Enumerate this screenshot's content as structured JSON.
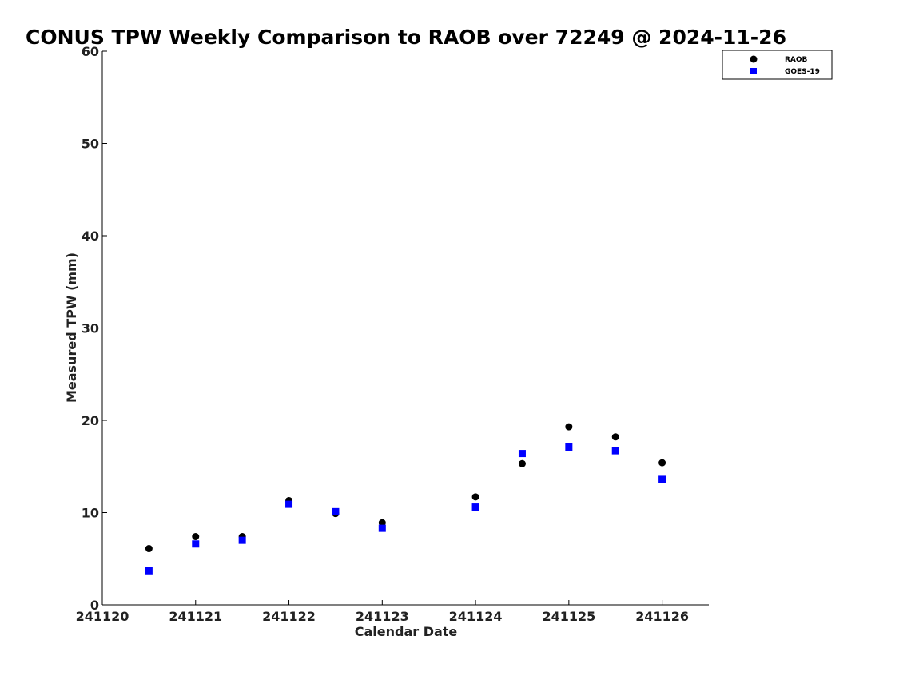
{
  "chart_data": {
    "type": "scatter",
    "title": "CONUS TPW Weekly Comparison to RAOB over 72249 @ 2024-11-26",
    "xlabel": "Calendar Date",
    "ylabel": "Measured TPW (mm)",
    "xlim": [
      0,
      6.5
    ],
    "ylim": [
      0,
      60
    ],
    "xticks": [
      0,
      1,
      2,
      3,
      4,
      5,
      6
    ],
    "xtick_labels": [
      "241120",
      "241121",
      "241122",
      "241123",
      "241124",
      "241125",
      "241126"
    ],
    "yticks": [
      0,
      10,
      20,
      30,
      40,
      50,
      60
    ],
    "ytick_labels": [
      "0",
      "10",
      "20",
      "30",
      "40",
      "50",
      "60"
    ],
    "grid": false,
    "legend_position": "top-right",
    "series": [
      {
        "name": "RAOB",
        "marker": "circle",
        "color": "#000000",
        "x": [
          0.5,
          1.0,
          1.5,
          2.0,
          2.5,
          3.0,
          4.0,
          4.5,
          5.0,
          5.5,
          6.0
        ],
        "y": [
          6.1,
          7.4,
          7.4,
          11.3,
          9.9,
          8.9,
          11.7,
          15.3,
          19.3,
          18.2,
          15.4
        ]
      },
      {
        "name": "GOES-19",
        "marker": "square",
        "color": "#0000ff",
        "x": [
          0.5,
          1.0,
          1.5,
          2.0,
          2.5,
          3.0,
          4.0,
          4.5,
          5.0,
          5.5,
          6.0
        ],
        "y": [
          3.7,
          6.6,
          7.0,
          10.9,
          10.1,
          8.3,
          10.6,
          16.4,
          17.1,
          16.7,
          13.6
        ]
      }
    ]
  }
}
